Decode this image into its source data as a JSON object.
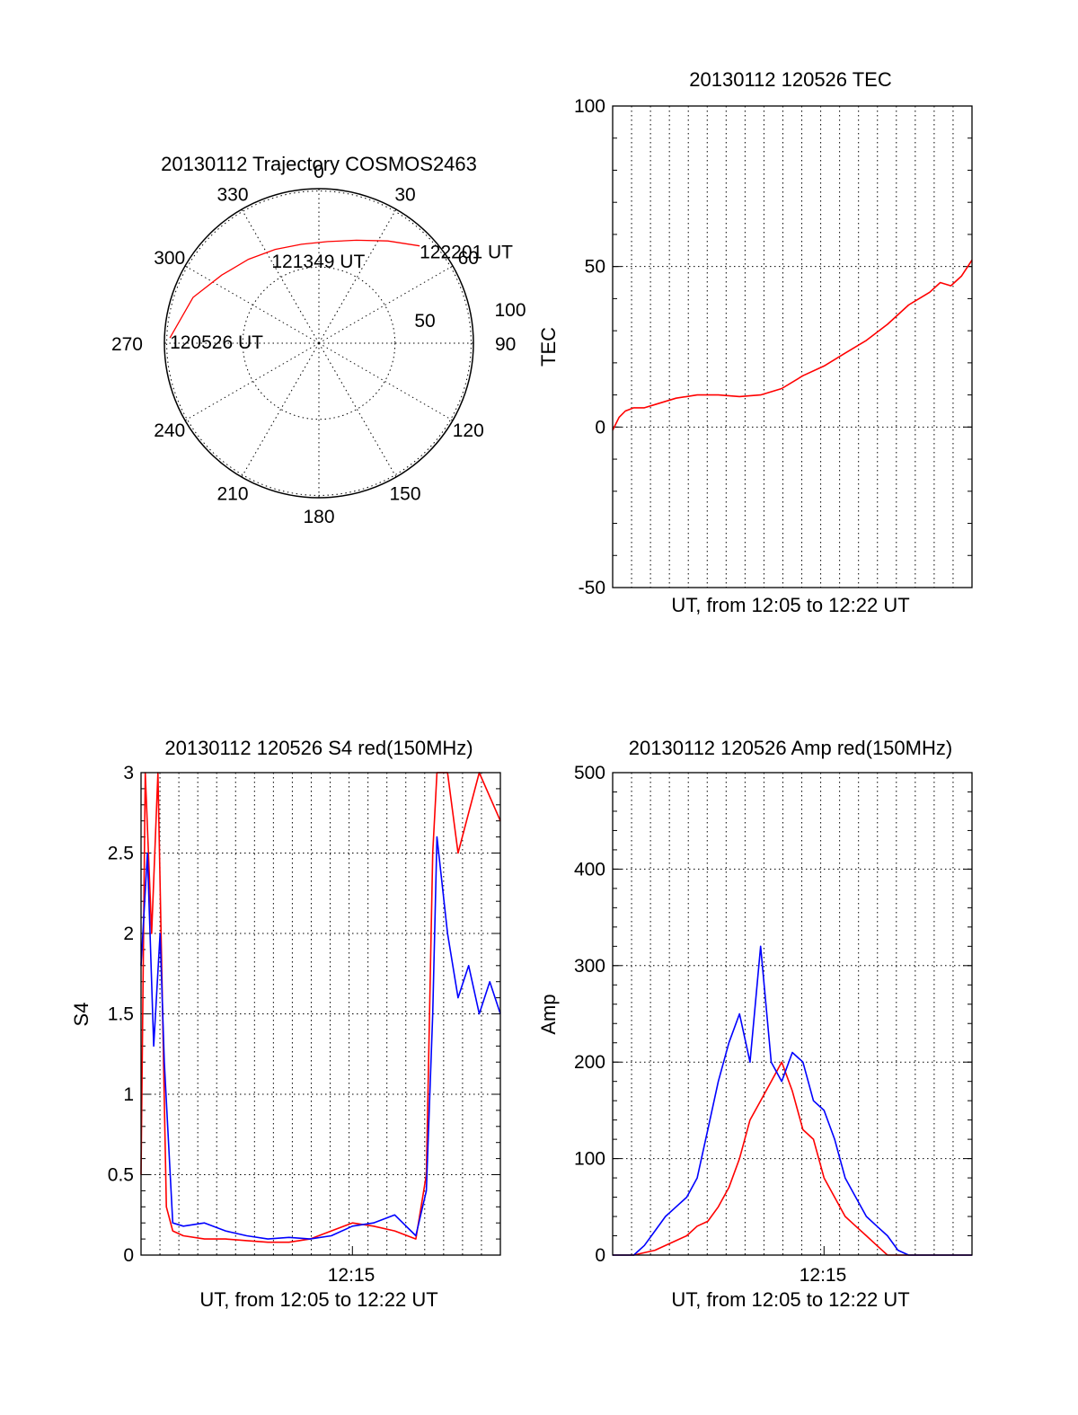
{
  "figure": {
    "polar": {
      "title": "20130112 Trajectory COSMOS2463",
      "azimuth_labels": [
        "0",
        "30",
        "60",
        "90",
        "120",
        "150",
        "180",
        "210",
        "240",
        "270",
        "300",
        "330"
      ],
      "elevation_labels": [
        "50",
        "100"
      ],
      "annotations": [
        "120526 UT",
        "121349 UT",
        "122201 UT"
      ]
    },
    "tec": {
      "title": "20130112 120526 TEC",
      "ylabel": "TEC",
      "xlabel": "UT, from 12:05 to 12:22 UT",
      "ytick_labels": [
        "-50",
        "0",
        "50",
        "100"
      ]
    },
    "s4": {
      "title": "20130112 120526 S4 red(150MHz)",
      "ylabel": "S4",
      "xlabel": "UT, from 12:05 to 12:22 UT",
      "xtick_label": "12:15",
      "ytick_labels": [
        "0",
        "0.5",
        "1",
        "1.5",
        "2",
        "2.5",
        "3"
      ]
    },
    "amp": {
      "title": "20130112 120526 Amp red(150MHz)",
      "ylabel": "Amp",
      "xlabel": "UT, from 12:05 to 12:22 UT",
      "xtick_label": "12:15",
      "ytick_labels": [
        "0",
        "100",
        "200",
        "300",
        "400",
        "500"
      ]
    }
  },
  "chart_data": [
    {
      "type": "scatter",
      "subtype": "polar-trajectory",
      "title": "20130112 Trajectory COSMOS2463",
      "radial_axis": "elevation-based radius (0 at center, rings at 50 and 100)",
      "azimuth_ticks_deg": [
        0,
        30,
        60,
        90,
        120,
        150,
        180,
        210,
        240,
        270,
        300,
        330
      ],
      "series": [
        {
          "color": "#ff0000",
          "points": [
            {
              "az": 272,
              "r": 98,
              "label": "120526 UT"
            },
            {
              "az": 290,
              "r": 88
            },
            {
              "az": 305,
              "r": 78
            },
            {
              "az": 320,
              "r": 72
            },
            {
              "az": 335,
              "r": 68
            },
            {
              "az": 350,
              "r": 66
            },
            {
              "az": 5,
              "r": 67
            },
            {
              "az": 20,
              "r": 72
            },
            {
              "az": 34,
              "r": 81
            },
            {
              "az": 46,
              "r": 92,
              "label": "122201 UT"
            }
          ]
        }
      ],
      "mid_label": {
        "az": 357,
        "r": 52,
        "label": "121349 UT"
      }
    },
    {
      "type": "line",
      "title": "20130112 120526 TEC",
      "xlabel": "UT, from 12:05 to 12:22 UT",
      "ylabel": "TEC",
      "xlim_min": [
        0,
        17
      ],
      "ylim": [
        -50,
        100
      ],
      "grid": true,
      "series": [
        {
          "color": "#ff0000",
          "x": [
            0.0,
            0.3,
            0.6,
            1.0,
            1.5,
            2.0,
            3.0,
            4.0,
            5.0,
            6.0,
            7.0,
            8.0,
            9.0,
            10.0,
            11.0,
            12.0,
            13.0,
            14.0,
            15.0,
            15.5,
            16.0,
            16.5,
            17.0
          ],
          "y": [
            -1,
            3,
            5,
            6,
            6,
            7,
            9,
            10,
            10,
            9.5,
            10,
            12,
            16,
            19,
            23,
            27,
            32,
            38,
            42,
            45,
            44,
            47,
            52
          ]
        }
      ]
    },
    {
      "type": "line",
      "title": "20130112 120526 S4 red(150MHz)",
      "xlabel": "UT, from 12:05 to 12:22 UT",
      "ylabel": "S4",
      "xtick": {
        "value": 10,
        "label": "12:15"
      },
      "xlim_min": [
        0,
        17
      ],
      "ylim": [
        0,
        3
      ],
      "grid": true,
      "series": [
        {
          "color": "#ff0000",
          "x": [
            0.0,
            0.2,
            0.5,
            0.8,
            1.2,
            1.5,
            2.0,
            3.0,
            4.0,
            5.0,
            6.0,
            7.0,
            8.0,
            9.0,
            10.0,
            11.0,
            12.0,
            13.0,
            13.5,
            13.8,
            14.0,
            14.5,
            15.0,
            16.0,
            17.0
          ],
          "y": [
            0.5,
            3.0,
            2.0,
            3.0,
            0.3,
            0.15,
            0.12,
            0.1,
            0.1,
            0.09,
            0.08,
            0.08,
            0.1,
            0.15,
            0.2,
            0.18,
            0.15,
            0.1,
            0.5,
            2.5,
            3.0,
            3.0,
            2.5,
            3.0,
            2.7
          ]
        },
        {
          "color": "#0000ff",
          "x": [
            0.0,
            0.3,
            0.6,
            0.9,
            1.1,
            1.5,
            2.0,
            3.0,
            4.0,
            5.0,
            6.0,
            7.0,
            8.0,
            9.0,
            10.0,
            11.0,
            12.0,
            13.0,
            13.5,
            13.8,
            14.0,
            14.5,
            15.0,
            15.5,
            16.0,
            16.5,
            17.0
          ],
          "y": [
            1.8,
            2.5,
            1.3,
            2.0,
            1.2,
            0.2,
            0.18,
            0.2,
            0.15,
            0.12,
            0.1,
            0.11,
            0.1,
            0.12,
            0.18,
            0.2,
            0.25,
            0.12,
            0.4,
            1.5,
            2.6,
            2.0,
            1.6,
            1.8,
            1.5,
            1.7,
            1.5
          ]
        }
      ]
    },
    {
      "type": "line",
      "title": "20130112 120526 Amp red(150MHz)",
      "xlabel": "UT, from 12:05 to 12:22 UT",
      "ylabel": "Amp",
      "xtick": {
        "value": 10,
        "label": "12:15"
      },
      "xlim_min": [
        0,
        17
      ],
      "ylim": [
        0,
        500
      ],
      "grid": true,
      "series": [
        {
          "color": "#ff0000",
          "x": [
            0.0,
            1.0,
            2.0,
            3.0,
            3.5,
            4.0,
            4.5,
            5.0,
            5.5,
            6.0,
            6.5,
            7.0,
            7.5,
            8.0,
            8.5,
            9.0,
            9.5,
            10.0,
            10.5,
            11.0,
            11.5,
            12.0,
            12.5,
            13.0,
            14.0,
            17.0
          ],
          "y": [
            0,
            0,
            5,
            15,
            20,
            30,
            35,
            50,
            70,
            100,
            140,
            160,
            180,
            200,
            170,
            130,
            120,
            80,
            60,
            40,
            30,
            20,
            10,
            0,
            0,
            0
          ]
        },
        {
          "color": "#0000ff",
          "x": [
            0.0,
            1.0,
            1.5,
            2.0,
            2.5,
            3.0,
            3.5,
            4.0,
            4.5,
            5.0,
            5.5,
            6.0,
            6.5,
            7.0,
            7.5,
            8.0,
            8.5,
            9.0,
            9.5,
            10.0,
            10.5,
            11.0,
            11.5,
            12.0,
            12.5,
            13.0,
            13.5,
            14.0,
            17.0
          ],
          "y": [
            0,
            0,
            10,
            25,
            40,
            50,
            60,
            80,
            130,
            180,
            220,
            250,
            200,
            320,
            200,
            180,
            210,
            200,
            160,
            150,
            120,
            80,
            60,
            40,
            30,
            20,
            5,
            0,
            0
          ]
        }
      ]
    }
  ]
}
